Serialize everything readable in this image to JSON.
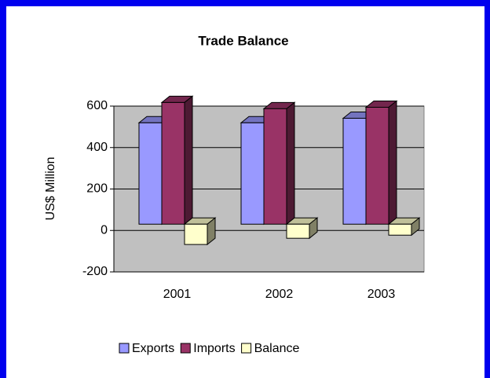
{
  "chart_data": {
    "type": "bar3d",
    "title": "Trade Balance",
    "y_label": "US$ Million",
    "categories": [
      "2001",
      "2002",
      "2003"
    ],
    "series": [
      {
        "name": "Exports",
        "color": "#9999ff",
        "values": [
          489,
          489,
          511
        ]
      },
      {
        "name": "Imports",
        "color": "#993366",
        "values": [
          587,
          557,
          564
        ]
      },
      {
        "name": "Balance",
        "color": "#ffffcc",
        "values": [
          -98,
          -68,
          -53
        ]
      }
    ],
    "ylim": [
      -200,
      600
    ],
    "yticks": [
      -200,
      0,
      200,
      400,
      600
    ],
    "grid": true,
    "legend": "bottom"
  }
}
